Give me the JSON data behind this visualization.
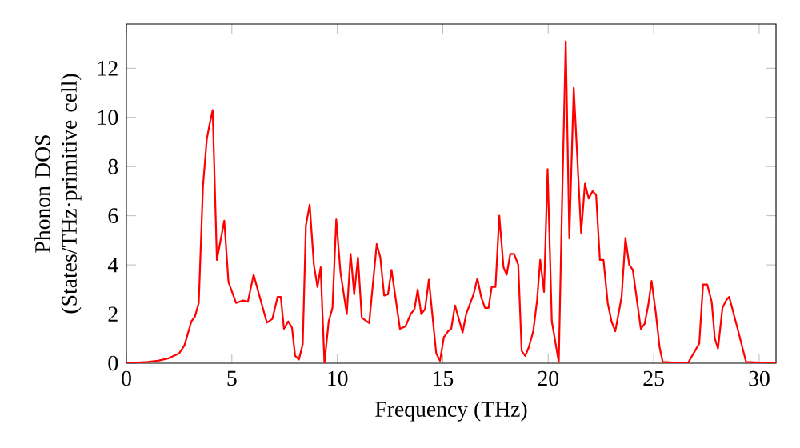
{
  "chart_data": {
    "type": "line",
    "xlabel": "Frequency (THz)",
    "ylabel": "Phonon DOS (States/THz·primitive cell)",
    "x": [
      0,
      1,
      1.5,
      2,
      2.5,
      2.75,
      3.08,
      3.25,
      3.43,
      3.63,
      3.81,
      3.94,
      4.09,
      4.29,
      4.64,
      4.84,
      5.2,
      5.53,
      5.76,
      6.03,
      6.66,
      6.92,
      7.17,
      7.32,
      7.47,
      7.67,
      7.85,
      8.0,
      8.18,
      8.36,
      8.51,
      8.69,
      8.89,
      9.06,
      9.21,
      9.39,
      9.59,
      9.77,
      9.95,
      10.15,
      10.45,
      10.63,
      10.8,
      10.98,
      11.16,
      11.51,
      11.87,
      12.04,
      12.22,
      12.4,
      12.57,
      12.97,
      13.23,
      13.48,
      13.66,
      13.81,
      13.98,
      14.16,
      14.34,
      14.69,
      14.87,
      15.05,
      15.25,
      15.4,
      15.58,
      15.94,
      16.11,
      16.46,
      16.64,
      16.82,
      17.0,
      17.17,
      17.32,
      17.5,
      17.68,
      17.88,
      18.03,
      18.2,
      18.38,
      18.58,
      18.74,
      18.91,
      19.08,
      19.29,
      19.47,
      19.62,
      19.8,
      19.97,
      20.17,
      20.5,
      20.65,
      20.83,
      21.0,
      21.21,
      21.56,
      21.74,
      21.92,
      22.1,
      22.27,
      22.45,
      22.62,
      22.82,
      23.0,
      23.18,
      23.48,
      23.66,
      23.84,
      24.01,
      24.39,
      24.57,
      24.74,
      24.9,
      25.1,
      25.28,
      25.43,
      26.62,
      27.16,
      27.34,
      27.54,
      27.75,
      27.9,
      28.05,
      28.26,
      28.43,
      28.58,
      29.01,
      29.38,
      30.8
    ],
    "series": [
      {
        "color": "#ff0000",
        "values": [
          0,
          0.05,
          0.1,
          0.2,
          0.4,
          0.72,
          1.7,
          1.9,
          2.45,
          7.2,
          9.1,
          9.7,
          10.3,
          4.2,
          5.8,
          3.3,
          2.45,
          2.55,
          2.5,
          3.6,
          1.65,
          1.8,
          2.7,
          2.7,
          1.4,
          1.7,
          1.45,
          0.3,
          0.15,
          0.77,
          5.6,
          6.45,
          4.0,
          3.1,
          3.9,
          0.0,
          1.7,
          2.25,
          5.85,
          3.7,
          2.0,
          4.45,
          2.8,
          4.3,
          1.85,
          1.63,
          4.85,
          4.3,
          2.75,
          2.8,
          3.8,
          1.4,
          1.5,
          2.0,
          2.2,
          3.0,
          2.0,
          2.2,
          3.4,
          0.4,
          0.1,
          1.05,
          1.3,
          1.4,
          2.35,
          1.25,
          2.0,
          2.8,
          3.45,
          2.7,
          2.25,
          2.25,
          3.1,
          3.1,
          6.0,
          3.9,
          3.6,
          4.45,
          4.45,
          4.0,
          0.5,
          0.3,
          0.65,
          1.3,
          2.55,
          4.2,
          2.9,
          7.9,
          1.7,
          0.05,
          6.3,
          13.1,
          5.08,
          11.2,
          5.3,
          7.3,
          6.7,
          7.0,
          6.85,
          4.2,
          4.2,
          2.45,
          1.7,
          1.3,
          2.7,
          5.1,
          4.0,
          3.8,
          1.4,
          1.6,
          2.35,
          3.35,
          2.05,
          0.65,
          0.05,
          0,
          0.8,
          3.2,
          3.2,
          2.5,
          1.0,
          0.6,
          2.25,
          2.55,
          2.7,
          1.3,
          0.05,
          0
        ]
      }
    ],
    "xlim": [
      0,
      30.8
    ],
    "ylim": [
      0,
      13.8
    ],
    "xticks": [
      0,
      5,
      10,
      15,
      20,
      25,
      30
    ],
    "yticks": [
      0,
      2,
      4,
      6,
      8,
      10,
      12
    ],
    "marker": "none",
    "line_style": "solid"
  }
}
